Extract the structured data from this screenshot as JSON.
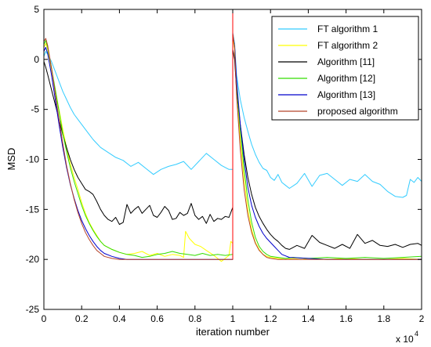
{
  "chart_data": {
    "type": "line",
    "title": "",
    "xlabel": "iteration number",
    "ylabel": "MSD",
    "x_multiplier_label": "x 10",
    "x_multiplier_exponent": "4",
    "xlim": [
      0,
      2
    ],
    "ylim": [
      -25,
      5
    ],
    "x_ticks": [
      0,
      0.2,
      0.4,
      0.6,
      0.8,
      1,
      1.2,
      1.4,
      1.6,
      1.8,
      2
    ],
    "x_tick_labels": [
      "0",
      "0.2",
      "0.4",
      "0.6",
      "0.8",
      "1",
      "1.2",
      "1.4",
      "1.6",
      "1.8",
      "2"
    ],
    "y_ticks": [
      5,
      0,
      -5,
      -10,
      -15,
      -20,
      -25
    ],
    "y_tick_labels": [
      "5",
      "0",
      "-5",
      "-10",
      "-15",
      "-20",
      "-25"
    ],
    "grid": false,
    "legend_position": "top-right",
    "change_point": {
      "x": 1.0,
      "y_from": -20,
      "y_to": 5,
      "color": "#ff0000"
    },
    "series": [
      {
        "name": "FT algorithm 1",
        "color": "#33ccff",
        "x": [
          0.0,
          0.01,
          0.02,
          0.04,
          0.06,
          0.08,
          0.1,
          0.12,
          0.14,
          0.16,
          0.18,
          0.2,
          0.22,
          0.24,
          0.26,
          0.28,
          0.3,
          0.34,
          0.38,
          0.42,
          0.46,
          0.5,
          0.54,
          0.58,
          0.62,
          0.66,
          0.7,
          0.74,
          0.78,
          0.82,
          0.86,
          0.9,
          0.94,
          0.98,
          1.0,
          1.0,
          1.01,
          1.02,
          1.04,
          1.06,
          1.08,
          1.1,
          1.12,
          1.14,
          1.16,
          1.18,
          1.2,
          1.22,
          1.24,
          1.26,
          1.28,
          1.3,
          1.34,
          1.38,
          1.42,
          1.46,
          1.5,
          1.54,
          1.58,
          1.62,
          1.66,
          1.7,
          1.74,
          1.78,
          1.82,
          1.86,
          1.9,
          1.92,
          1.94,
          1.96,
          1.98,
          2.0
        ],
        "y": [
          0.3,
          0.8,
          0.5,
          -0.2,
          -1.2,
          -2.2,
          -3.2,
          -4.0,
          -4.8,
          -5.5,
          -6.0,
          -6.5,
          -7.0,
          -7.5,
          -8.0,
          -8.4,
          -8.8,
          -9.3,
          -9.8,
          -10.1,
          -10.7,
          -10.3,
          -10.9,
          -11.5,
          -11.0,
          -10.7,
          -10.5,
          -10.2,
          -11.0,
          -10.2,
          -9.4,
          -10.0,
          -10.6,
          -11.0,
          -11.0,
          2.7,
          1.6,
          -1.5,
          -4.0,
          -5.8,
          -7.2,
          -8.5,
          -9.5,
          -10.3,
          -10.9,
          -11.1,
          -11.8,
          -12.1,
          -11.5,
          -12.3,
          -12.6,
          -12.9,
          -12.4,
          -11.4,
          -12.7,
          -11.6,
          -11.4,
          -12.0,
          -12.6,
          -12.0,
          -12.2,
          -11.5,
          -12.2,
          -12.5,
          -13.2,
          -13.7,
          -13.8,
          -13.6,
          -12.0,
          -12.3,
          -11.8,
          -12.2
        ]
      },
      {
        "name": "FT algorithm 2",
        "color": "#ffff00",
        "x": [
          0.0,
          0.01,
          0.02,
          0.04,
          0.06,
          0.08,
          0.1,
          0.12,
          0.14,
          0.16,
          0.18,
          0.2,
          0.22,
          0.24,
          0.26,
          0.28,
          0.3,
          0.32,
          0.36,
          0.4,
          0.44,
          0.48,
          0.52,
          0.56,
          0.6,
          0.64,
          0.68,
          0.72,
          0.74,
          0.75,
          0.77,
          0.8,
          0.83,
          0.86,
          0.9,
          0.94,
          0.98,
          0.99,
          1.0,
          1.0,
          1.01,
          1.02,
          1.04,
          1.06,
          1.08,
          1.1,
          1.12,
          1.14,
          1.16,
          1.18,
          1.2,
          1.24,
          1.28,
          1.32,
          1.36,
          1.4,
          1.5,
          1.6,
          1.7,
          1.8,
          1.9,
          2.0
        ],
        "y": [
          1.2,
          1.6,
          1.0,
          -1.0,
          -3.0,
          -5.0,
          -7.0,
          -8.8,
          -10.4,
          -11.8,
          -13.0,
          -14.3,
          -15.4,
          -16.3,
          -17.0,
          -17.6,
          -18.2,
          -18.6,
          -19.0,
          -19.3,
          -19.5,
          -19.4,
          -19.2,
          -19.6,
          -19.4,
          -19.7,
          -19.5,
          -19.6,
          -19.8,
          -17.2,
          -17.9,
          -18.5,
          -18.7,
          -19.1,
          -19.6,
          -20.2,
          -19.6,
          -18.2,
          -18.4,
          2.2,
          1.0,
          -3.0,
          -8.0,
          -12.0,
          -15.0,
          -17.0,
          -18.3,
          -19.0,
          -19.5,
          -19.7,
          -19.8,
          -19.9,
          -20.0,
          -19.9,
          -20.0,
          -19.9,
          -20.0,
          -19.9,
          -20.0,
          -20.0,
          -19.9,
          -20.0
        ]
      },
      {
        "name": "Algorithm [11]",
        "color": "#000000",
        "x": [
          0.0,
          0.01,
          0.02,
          0.04,
          0.06,
          0.08,
          0.1,
          0.12,
          0.14,
          0.16,
          0.18,
          0.2,
          0.22,
          0.24,
          0.26,
          0.28,
          0.3,
          0.32,
          0.34,
          0.36,
          0.38,
          0.4,
          0.42,
          0.44,
          0.46,
          0.48,
          0.5,
          0.52,
          0.54,
          0.56,
          0.58,
          0.6,
          0.62,
          0.64,
          0.66,
          0.68,
          0.7,
          0.72,
          0.74,
          0.76,
          0.78,
          0.8,
          0.82,
          0.84,
          0.86,
          0.88,
          0.9,
          0.92,
          0.94,
          0.96,
          0.98,
          1.0,
          1.0,
          1.01,
          1.02,
          1.04,
          1.06,
          1.08,
          1.1,
          1.12,
          1.14,
          1.16,
          1.18,
          1.2,
          1.22,
          1.24,
          1.26,
          1.28,
          1.3,
          1.34,
          1.38,
          1.42,
          1.46,
          1.5,
          1.54,
          1.58,
          1.62,
          1.66,
          1.7,
          1.74,
          1.78,
          1.82,
          1.86,
          1.9,
          1.94,
          1.98,
          2.0
        ],
        "y": [
          -0.2,
          -0.8,
          -1.5,
          -3.0,
          -4.5,
          -6.0,
          -7.5,
          -8.8,
          -10.0,
          -11.0,
          -11.8,
          -12.4,
          -13.0,
          -13.2,
          -13.5,
          -14.2,
          -15.0,
          -15.6,
          -16.0,
          -16.2,
          -15.8,
          -16.5,
          -16.3,
          -14.5,
          -15.4,
          -15.0,
          -14.7,
          -15.4,
          -15.0,
          -14.6,
          -15.6,
          -15.8,
          -15.3,
          -14.7,
          -15.1,
          -16.0,
          -15.9,
          -15.3,
          -15.6,
          -15.4,
          -14.4,
          -15.6,
          -16.0,
          -15.7,
          -16.4,
          -15.5,
          -16.2,
          -15.9,
          -16.0,
          -15.7,
          -15.8,
          -14.8,
          1.0,
          0.0,
          -3.0,
          -6.5,
          -9.5,
          -11.8,
          -13.5,
          -14.8,
          -15.7,
          -16.4,
          -17.0,
          -17.5,
          -17.9,
          -18.2,
          -18.6,
          -18.9,
          -19.0,
          -18.6,
          -18.9,
          -17.6,
          -18.3,
          -18.6,
          -18.9,
          -18.5,
          -18.9,
          -17.5,
          -18.4,
          -18.1,
          -18.6,
          -18.7,
          -18.5,
          -18.8,
          -18.5,
          -18.4,
          -18.6
        ]
      },
      {
        "name": "Algorithm [12]",
        "color": "#33dd00",
        "x": [
          0.0,
          0.01,
          0.02,
          0.04,
          0.06,
          0.08,
          0.1,
          0.12,
          0.14,
          0.16,
          0.18,
          0.2,
          0.22,
          0.24,
          0.26,
          0.28,
          0.3,
          0.32,
          0.36,
          0.4,
          0.44,
          0.48,
          0.52,
          0.56,
          0.6,
          0.64,
          0.68,
          0.72,
          0.76,
          0.8,
          0.84,
          0.88,
          0.92,
          0.96,
          1.0,
          1.0,
          1.01,
          1.02,
          1.04,
          1.06,
          1.08,
          1.1,
          1.12,
          1.14,
          1.16,
          1.18,
          1.2,
          1.24,
          1.28,
          1.32,
          1.4,
          1.5,
          1.6,
          1.7,
          1.8,
          1.9,
          2.0
        ],
        "y": [
          1.5,
          1.9,
          1.2,
          -0.8,
          -3.0,
          -5.2,
          -7.4,
          -9.2,
          -10.8,
          -12.2,
          -13.4,
          -14.6,
          -15.6,
          -16.4,
          -17.1,
          -17.7,
          -18.2,
          -18.6,
          -19.0,
          -19.3,
          -19.5,
          -19.6,
          -19.8,
          -19.7,
          -19.5,
          -19.4,
          -19.2,
          -19.4,
          -19.5,
          -19.6,
          -19.4,
          -19.6,
          -19.5,
          -19.6,
          -19.5,
          2.5,
          1.2,
          -2.5,
          -7.0,
          -11.0,
          -14.0,
          -16.3,
          -17.8,
          -18.7,
          -19.2,
          -19.5,
          -19.7,
          -19.8,
          -19.9,
          -19.8,
          -19.9,
          -19.8,
          -19.9,
          -19.8,
          -19.9,
          -19.8,
          -19.7
        ]
      },
      {
        "name": "Algorithm [13]",
        "color": "#0000cc",
        "x": [
          0.0,
          0.01,
          0.02,
          0.04,
          0.06,
          0.08,
          0.1,
          0.12,
          0.14,
          0.16,
          0.18,
          0.2,
          0.22,
          0.24,
          0.26,
          0.28,
          0.3,
          0.32,
          0.36,
          0.4,
          0.44,
          0.5,
          0.6,
          0.7,
          0.8,
          0.9,
          1.0,
          1.0,
          1.01,
          1.02,
          1.04,
          1.06,
          1.08,
          1.1,
          1.12,
          1.14,
          1.16,
          1.18,
          1.2,
          1.22,
          1.24,
          1.26,
          1.3,
          1.4,
          1.5,
          1.6,
          1.7,
          1.8,
          1.9,
          2.0
        ],
        "y": [
          0.8,
          1.2,
          0.6,
          -1.5,
          -4.0,
          -6.5,
          -8.8,
          -10.8,
          -12.5,
          -13.9,
          -15.1,
          -16.1,
          -16.9,
          -17.6,
          -18.2,
          -18.7,
          -19.1,
          -19.4,
          -19.7,
          -19.9,
          -20.0,
          -20.0,
          -20.0,
          -20.0,
          -20.0,
          -20.0,
          -20.0,
          2.5,
          1.3,
          -2.0,
          -6.5,
          -10.0,
          -12.8,
          -14.6,
          -15.8,
          -16.7,
          -17.4,
          -17.9,
          -18.3,
          -18.7,
          -19.1,
          -19.5,
          -19.8,
          -19.9,
          -20.0,
          -20.0,
          -20.0,
          -20.0,
          -20.0,
          -20.0
        ]
      },
      {
        "name": "proposed algorithm",
        "color": "#b5442b",
        "x": [
          0.0,
          0.01,
          0.02,
          0.04,
          0.06,
          0.08,
          0.1,
          0.12,
          0.14,
          0.16,
          0.18,
          0.2,
          0.22,
          0.24,
          0.26,
          0.28,
          0.3,
          0.32,
          0.36,
          0.4,
          0.5,
          0.6,
          0.7,
          0.8,
          0.9,
          1.0,
          1.0,
          1.01,
          1.02,
          1.04,
          1.06,
          1.08,
          1.1,
          1.12,
          1.14,
          1.16,
          1.18,
          1.2,
          1.24,
          1.3,
          1.4,
          1.5,
          1.6,
          1.7,
          1.8,
          1.9,
          2.0
        ],
        "y": [
          1.8,
          2.1,
          1.4,
          -0.8,
          -3.4,
          -6.0,
          -8.4,
          -10.6,
          -12.4,
          -14.0,
          -15.3,
          -16.4,
          -17.3,
          -18.0,
          -18.6,
          -19.1,
          -19.4,
          -19.7,
          -19.9,
          -20.0,
          -20.0,
          -20.0,
          -20.0,
          -20.0,
          -20.0,
          -20.0,
          2.6,
          1.2,
          -3.5,
          -9.0,
          -13.0,
          -15.6,
          -17.3,
          -18.4,
          -19.1,
          -19.5,
          -19.8,
          -19.9,
          -20.0,
          -20.0,
          -20.0,
          -20.0,
          -20.0,
          -20.0,
          -20.0,
          -20.0,
          -20.0
        ]
      }
    ]
  }
}
